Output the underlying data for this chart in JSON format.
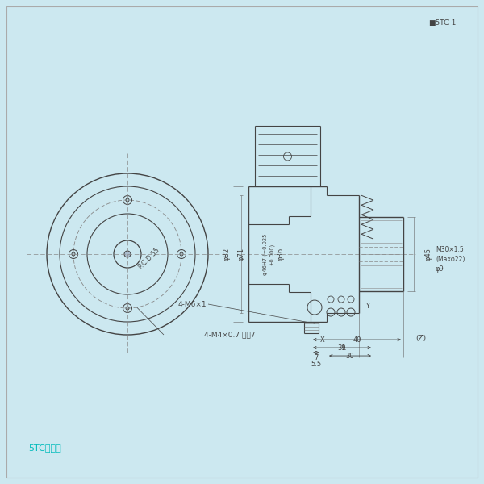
{
  "bg_color": "#cce8f0",
  "line_color": "#444444",
  "cyan_color": "#00cccc",
  "title_text": "5TC寸法図",
  "fig_label": "■5TC-1",
  "annotation_4M4": "4-M4×0.7 深サ7",
  "annotation_pcd": "P.C.D 55",
  "label_4M6": "4-M6×1"
}
